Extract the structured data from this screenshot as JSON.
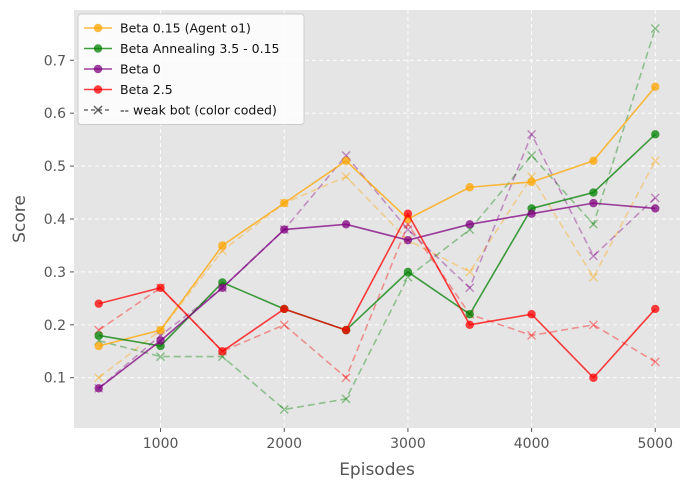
{
  "chart_data": {
    "type": "line",
    "xlabel": "Episodes",
    "ylabel": "Score",
    "x": [
      500,
      1000,
      1500,
      2000,
      2500,
      3000,
      3500,
      4000,
      4500,
      5000
    ],
    "xlim": [
      300,
      5200
    ],
    "ylim": [
      0.005,
      0.795
    ],
    "x_ticks": [
      1000,
      2000,
      3000,
      4000,
      5000
    ],
    "y_ticks": [
      0.1,
      0.2,
      0.3,
      0.4,
      0.5,
      0.6,
      0.7
    ],
    "grid": true,
    "legend_position": "top-left",
    "series": [
      {
        "name": "Beta 0.15 (Agent o1)",
        "color": "#FFA500",
        "style": "solid",
        "marker": "circle",
        "values": [
          0.16,
          0.19,
          0.35,
          0.43,
          0.51,
          0.4,
          0.46,
          0.47,
          0.51,
          0.65
        ]
      },
      {
        "name": "Beta Annealing 3.5 - 0.15",
        "color": "#008000",
        "style": "solid",
        "marker": "circle",
        "values": [
          0.18,
          0.16,
          0.28,
          0.23,
          0.19,
          0.3,
          0.22,
          0.42,
          0.45,
          0.56
        ]
      },
      {
        "name": "Beta 0",
        "color": "#800080",
        "style": "solid",
        "marker": "circle",
        "values": [
          0.08,
          0.17,
          0.27,
          0.38,
          0.39,
          0.36,
          0.39,
          0.41,
          0.43,
          0.42
        ]
      },
      {
        "name": "Beta 2.5",
        "color": "#FF0000",
        "style": "solid",
        "marker": "circle",
        "values": [
          0.24,
          0.27,
          0.15,
          0.23,
          0.19,
          0.41,
          0.2,
          0.22,
          0.1,
          0.23
        ]
      },
      {
        "name": "",
        "color": "#FFA500",
        "style": "dashed",
        "marker": "x",
        "values": [
          0.1,
          0.19,
          0.34,
          0.43,
          0.48,
          0.36,
          0.3,
          0.48,
          0.29,
          0.51
        ]
      },
      {
        "name": "",
        "color": "#008000",
        "style": "dashed",
        "marker": "x",
        "values": [
          0.17,
          0.14,
          0.14,
          0.04,
          0.06,
          0.29,
          0.38,
          0.52,
          0.39,
          0.76
        ]
      },
      {
        "name": "",
        "color": "#800080",
        "style": "dashed",
        "marker": "x",
        "values": [
          0.08,
          0.18,
          0.27,
          0.38,
          0.52,
          0.38,
          0.27,
          0.56,
          0.33,
          0.44
        ]
      },
      {
        "name": "",
        "color": "#FF0000",
        "style": "dashed",
        "marker": "x",
        "values": [
          0.19,
          0.27,
          0.15,
          0.2,
          0.1,
          0.39,
          0.22,
          0.18,
          0.2,
          0.13
        ]
      }
    ],
    "legend": [
      {
        "label": "Beta 0.15 (Agent o1)",
        "color": "#FFA500",
        "style": "solid",
        "marker": "circle"
      },
      {
        "label": "Beta Annealing 3.5 - 0.15",
        "color": "#008000",
        "style": "solid",
        "marker": "circle"
      },
      {
        "label": "Beta 0",
        "color": "#800080",
        "style": "solid",
        "marker": "circle"
      },
      {
        "label": "Beta 2.5",
        "color": "#FF0000",
        "style": "solid",
        "marker": "circle"
      },
      {
        "label": "-- weak bot (color coded)",
        "color": "#404040",
        "style": "dashed",
        "marker": "x"
      }
    ]
  }
}
